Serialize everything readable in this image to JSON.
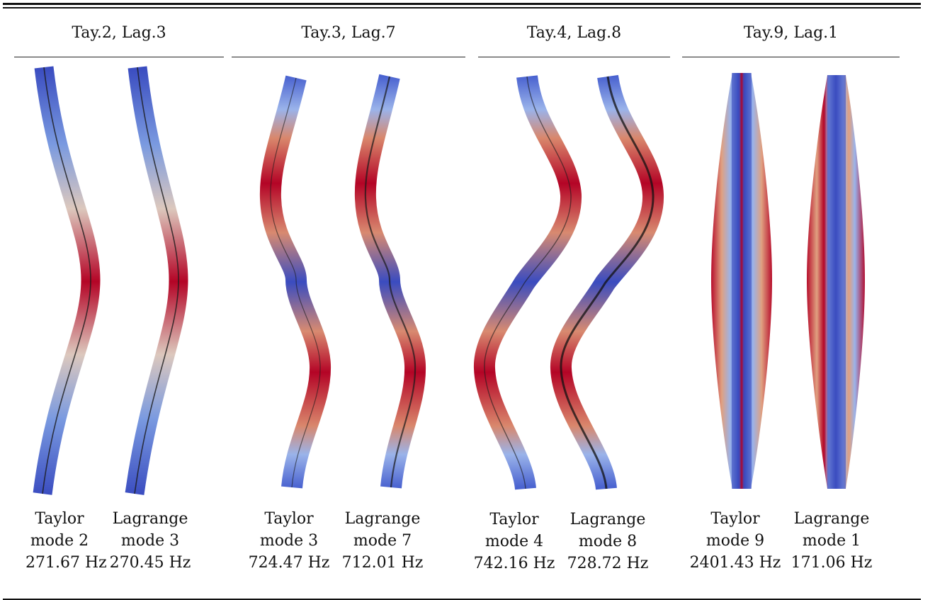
{
  "groups": [
    {
      "title": "Tay.2, Lag.3",
      "taylor": {
        "label": "Taylor",
        "mode": "mode 2",
        "freq": "271.67 Hz"
      },
      "lagrange": {
        "label": "Lagrange",
        "mode": "mode 3",
        "freq": "270.45 Hz"
      }
    },
    {
      "title": "Tay.3, Lag.7",
      "taylor": {
        "label": "Taylor",
        "mode": "mode 3",
        "freq": "724.47 Hz"
      },
      "lagrange": {
        "label": "Lagrange",
        "mode": "mode 7",
        "freq": "712.01 Hz"
      }
    },
    {
      "title": "Tay.4, Lag.8",
      "taylor": {
        "label": "Taylor",
        "mode": "mode 4",
        "freq": "742.16 Hz"
      },
      "lagrange": {
        "label": "Lagrange",
        "mode": "mode 8",
        "freq": "728.72 Hz"
      }
    },
    {
      "title": "Tay.9, Lag.1",
      "taylor": {
        "label": "Taylor",
        "mode": "mode 9",
        "freq": "2401.43 Hz"
      },
      "lagrange": {
        "label": "Lagrange",
        "mode": "mode 1",
        "freq": "171.06 Hz"
      }
    }
  ],
  "colors": {
    "blue": "#3a4cc0",
    "white": "#dddddd",
    "red": "#b40426"
  }
}
